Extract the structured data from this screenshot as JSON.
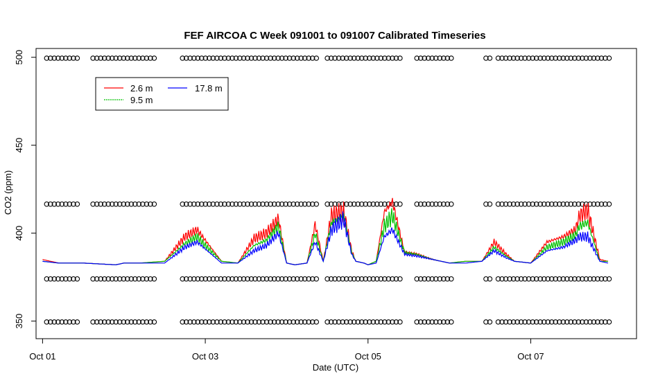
{
  "chart_data": {
    "type": "line",
    "title": "FEF AIRCOA C  Week 091001 to 091007  Calibrated Timeseries",
    "xlabel": "Date (UTC)",
    "ylabel": "CO2 (ppm)",
    "xlim": [
      -0.08,
      7.3
    ],
    "ylim": [
      340,
      505
    ],
    "x_ticks": [
      {
        "label": "Oct 01",
        "value": 0
      },
      {
        "label": "Oct 03",
        "value": 2
      },
      {
        "label": "Oct 05",
        "value": 4
      },
      {
        "label": "Oct 07",
        "value": 6
      }
    ],
    "y_ticks": [
      350,
      400,
      450,
      500
    ],
    "legend": {
      "placement": "top-left",
      "entries": [
        {
          "label": "2.6 m",
          "color": "#ff0000"
        },
        {
          "label": "9.5 m",
          "color": "#00c000"
        },
        {
          "label": "17.8 m",
          "color": "#0000ff"
        }
      ]
    },
    "series": [
      {
        "name": "2.6 m",
        "color": "#ff0000",
        "x": [
          0,
          0.2,
          0.5,
          0.9,
          1.0,
          1.1,
          1.2,
          1.5,
          1.75,
          1.9,
          2.0,
          2.2,
          2.4,
          2.6,
          2.75,
          2.9,
          3.0,
          3.1,
          3.25,
          3.35,
          3.45,
          3.55,
          3.7,
          3.8,
          3.85,
          3.95,
          4.0,
          4.1,
          4.2,
          4.3,
          4.45,
          4.6,
          4.8,
          5.0,
          5.2,
          5.4,
          5.55,
          5.7,
          5.8,
          6.0,
          6.2,
          6.4,
          6.55,
          6.6,
          6.7,
          6.85,
          6.95
        ],
        "y": [
          385,
          383,
          383,
          382,
          383,
          383,
          383,
          384,
          398,
          402,
          396,
          384,
          383,
          397,
          400,
          408,
          383,
          382,
          383,
          405,
          384,
          410,
          412,
          390,
          384,
          383,
          382,
          384,
          412,
          418,
          389,
          388,
          385,
          383,
          384,
          384,
          395,
          388,
          384,
          383,
          395,
          398,
          402,
          410,
          413,
          385,
          384
        ]
      },
      {
        "name": "9.5 m",
        "color": "#00c000",
        "x": [
          0,
          0.2,
          0.5,
          0.9,
          1.0,
          1.1,
          1.2,
          1.5,
          1.75,
          1.9,
          2.0,
          2.2,
          2.4,
          2.6,
          2.75,
          2.9,
          3.0,
          3.1,
          3.25,
          3.35,
          3.45,
          3.55,
          3.7,
          3.8,
          3.85,
          3.95,
          4.0,
          4.1,
          4.2,
          4.3,
          4.45,
          4.6,
          4.8,
          5.0,
          5.2,
          5.4,
          5.55,
          5.7,
          5.8,
          6.0,
          6.2,
          6.4,
          6.55,
          6.6,
          6.7,
          6.85,
          6.95
        ],
        "y": [
          384,
          383,
          383,
          382,
          383,
          383,
          383,
          384,
          394,
          398,
          393,
          384,
          383,
          393,
          396,
          404,
          383,
          382,
          383,
          400,
          384,
          406,
          410,
          389,
          384,
          383,
          382,
          384,
          404,
          410,
          389,
          388,
          385,
          383,
          384,
          384,
          392,
          387,
          384,
          383,
          392,
          395,
          399,
          404,
          406,
          384,
          384
        ]
      },
      {
        "name": "17.8 m",
        "color": "#0000ff",
        "x": [
          0,
          0.2,
          0.5,
          0.9,
          1.0,
          1.1,
          1.2,
          1.5,
          1.75,
          1.9,
          2.0,
          2.2,
          2.4,
          2.6,
          2.75,
          2.9,
          3.0,
          3.1,
          3.25,
          3.35,
          3.45,
          3.55,
          3.7,
          3.8,
          3.85,
          3.95,
          4.0,
          4.1,
          4.2,
          4.3,
          4.45,
          4.6,
          4.8,
          5.0,
          5.2,
          5.4,
          5.55,
          5.7,
          5.8,
          6.0,
          6.2,
          6.4,
          6.55,
          6.6,
          6.7,
          6.85,
          6.95
        ],
        "y": [
          384,
          383,
          383,
          382,
          383,
          383,
          383,
          383,
          392,
          395,
          391,
          383,
          383,
          390,
          393,
          400,
          383,
          382,
          383,
          395,
          384,
          402,
          408,
          388,
          384,
          383,
          382,
          383,
          398,
          402,
          388,
          387,
          385,
          383,
          383,
          384,
          390,
          386,
          384,
          383,
          390,
          392,
          396,
          398,
          398,
          384,
          383
        ]
      }
    ],
    "reference_markers": {
      "levels": [
        499.5,
        416.5,
        374,
        349.5
      ],
      "marker": "open-circle",
      "x_ranges": [
        [
          0.05,
          0.45
        ],
        [
          0.62,
          1.4
        ],
        [
          1.72,
          3.4
        ],
        [
          3.5,
          4.43
        ],
        [
          4.6,
          5.05
        ],
        [
          5.45,
          5.5
        ],
        [
          5.6,
          7.0
        ]
      ]
    }
  }
}
